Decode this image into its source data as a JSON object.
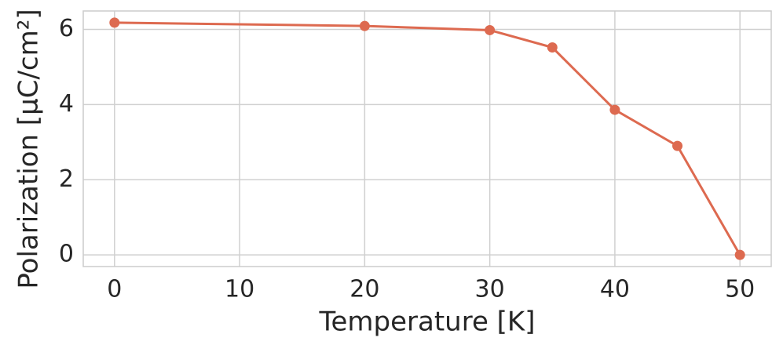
{
  "chart_data": {
    "type": "line",
    "x_label": "Temperature [K]",
    "y_label": "Polarization [μC/cm²]",
    "x": [
      0,
      20,
      30,
      35,
      40,
      45,
      50
    ],
    "series": [
      {
        "color": "#dd6a50",
        "values": [
          6.18,
          6.09,
          5.98,
          5.52,
          3.86,
          2.9,
          0
        ]
      }
    ],
    "xlim": [
      -2.5,
      52.5
    ],
    "ylim": [
      -0.31,
      6.49
    ],
    "xticks": [
      0,
      10,
      20,
      30,
      40,
      50
    ],
    "yticks": [
      0,
      2,
      4,
      6
    ],
    "grid": true
  }
}
